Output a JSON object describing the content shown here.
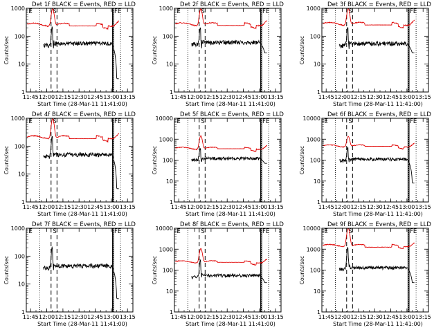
{
  "chart_data": {
    "type": "line",
    "xlabel": "Start Time (28-Mar-11 11:41:00)",
    "ylabel": "Counts/sec",
    "x_ticks": [
      "11:45",
      "12:00",
      "12:15",
      "12:30",
      "12:45",
      "13:00",
      "13:15"
    ],
    "x_tick_minutes": [
      4,
      19,
      34,
      49,
      64,
      79,
      94
    ],
    "xlim_minutes": [
      0,
      99
    ],
    "yscale": "log",
    "colors": {
      "events": "#000000",
      "lld": "#e00000",
      "axes": "#000000"
    },
    "markers": {
      "dotted_minutes": [
        12.5,
        80.5,
        87.5
      ],
      "dashed_minutes": [
        23,
        28.5
      ],
      "solid_minutes": [
        80,
        81
      ],
      "letters": [
        {
          "text": "E",
          "minute": 1.5
        },
        {
          "text": "S",
          "minute": 24
        },
        {
          "text": "FE",
          "minute": 81
        }
      ]
    },
    "panels": [
      {
        "title": "Det 1f BLACK = Events, RED = LLD",
        "ylim": [
          1,
          1000
        ],
        "y_ticks": [
          "1",
          "10",
          "100",
          "1000"
        ],
        "lld_base": 260,
        "lld_peak": 1000,
        "events_base": 55,
        "events_peak": 210,
        "lld_valley": 170,
        "events_drop_end": 3
      },
      {
        "title": "Det 2f BLACK = Events, RED = LLD",
        "ylim": [
          1,
          1000
        ],
        "y_ticks": [
          "1",
          "10",
          "100",
          "1000"
        ],
        "lld_base": 270,
        "lld_peak": 1000,
        "events_base": 60,
        "events_peak": 200,
        "lld_valley": 180,
        "events_drop_end": 25
      },
      {
        "title": "Det 3f BLACK = Events, RED = LLD",
        "ylim": [
          1,
          1000
        ],
        "y_ticks": [
          "1",
          "10",
          "100",
          "1000"
        ],
        "lld_base": 280,
        "lld_peak": 1000,
        "events_base": 55,
        "events_peak": 210,
        "lld_valley": 190,
        "events_drop_end": 25
      },
      {
        "title": "Det 4f BLACK = Events, RED = LLD",
        "ylim": [
          1,
          1000
        ],
        "y_ticks": [
          "1",
          "10",
          "100",
          "1000"
        ],
        "lld_base": 210,
        "lld_peak": 1000,
        "events_base": 50,
        "events_peak": 230,
        "lld_valley": 130,
        "events_drop_end": 3
      },
      {
        "title": "Det 5f BLACK = Events, RED = LLD",
        "ylim": [
          1,
          10000
        ],
        "y_ticks": [
          "1",
          "10",
          "100",
          "1000",
          "10000"
        ],
        "lld_base": 370,
        "lld_peak": 1500,
        "events_base": 120,
        "events_peak": 350,
        "lld_valley": 300,
        "events_drop_end": 70
      },
      {
        "title": "Det 6f BLACK = Events, RED = LLD",
        "ylim": [
          1,
          10000
        ],
        "y_ticks": [
          "1",
          "10",
          "100",
          "1000",
          "10000"
        ],
        "lld_base": 480,
        "lld_peak": 1400,
        "events_base": 110,
        "events_peak": 400,
        "lld_valley": 400,
        "events_drop_end": 8
      },
      {
        "title": "Det 7f BLACK = Events, RED = LLD",
        "ylim": [
          1,
          1000
        ],
        "y_ticks": [
          "1",
          "10",
          "100",
          "1000"
        ],
        "lld_base": null,
        "lld_peak": null,
        "events_base": 45,
        "events_peak": 210,
        "lld_valley": null,
        "events_drop_end": 3
      },
      {
        "title": "Det 8f BLACK = Events, RED = LLD",
        "ylim": [
          1,
          10000
        ],
        "y_ticks": [
          "1",
          "10",
          "100",
          "1000",
          "10000"
        ],
        "lld_base": 250,
        "lld_peak": 1100,
        "events_base": 55,
        "events_peak": 300,
        "lld_valley": 200,
        "events_drop_end": 25
      },
      {
        "title": "Det 9f BLACK = Events, RED = LLD",
        "ylim": [
          1,
          10000
        ],
        "y_ticks": [
          "1",
          "10",
          "100",
          "1000",
          "10000"
        ],
        "lld_base": 1500,
        "lld_peak": 10000,
        "events_base": 130,
        "events_peak": 1200,
        "lld_valley": 650,
        "events_drop_end": 25
      }
    ]
  }
}
